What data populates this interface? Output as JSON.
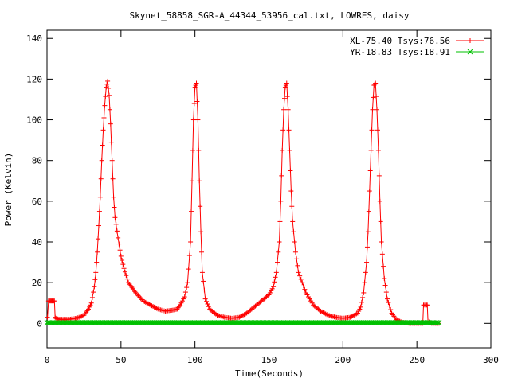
{
  "chart_data": {
    "type": "line",
    "title": "Skynet_58858_SGR-A_44344_53956_cal.txt, LOWRES, daisy",
    "xlabel": "Time(Seconds)",
    "ylabel": "Power (Kelvin)",
    "xlim": [
      0,
      300
    ],
    "ylim": [
      -12,
      144
    ],
    "x_ticks": [
      0,
      50,
      100,
      150,
      200,
      250,
      300
    ],
    "y_ticks": [
      0,
      20,
      40,
      60,
      80,
      100,
      120,
      140
    ],
    "grid": false,
    "legend_position": "top-right",
    "series": [
      {
        "name": "XL-75.40 Tsys:76.56",
        "color": "#ff0000",
        "marker": "plus",
        "points": [
          [
            0.3,
            3
          ],
          [
            1,
            11
          ],
          [
            2,
            11
          ],
          [
            3,
            11
          ],
          [
            4,
            11
          ],
          [
            5,
            11
          ],
          [
            5.5,
            3
          ],
          [
            6,
            2.5
          ],
          [
            8,
            2
          ],
          [
            10,
            2
          ],
          [
            15,
            2
          ],
          [
            20,
            2.5
          ],
          [
            25,
            4
          ],
          [
            28,
            7
          ],
          [
            30,
            10
          ],
          [
            32,
            18
          ],
          [
            33,
            25
          ],
          [
            34,
            35
          ],
          [
            35,
            48
          ],
          [
            36,
            62
          ],
          [
            37,
            80
          ],
          [
            38,
            95
          ],
          [
            39,
            107
          ],
          [
            40,
            116
          ],
          [
            41,
            119
          ],
          [
            42,
            112
          ],
          [
            43,
            98
          ],
          [
            44,
            80
          ],
          [
            45,
            62
          ],
          [
            46,
            52
          ],
          [
            48,
            42
          ],
          [
            50,
            33
          ],
          [
            52,
            27
          ],
          [
            55,
            20
          ],
          [
            58,
            17
          ],
          [
            60,
            15
          ],
          [
            65,
            11
          ],
          [
            70,
            9
          ],
          [
            75,
            7
          ],
          [
            80,
            6
          ],
          [
            85,
            6.5
          ],
          [
            88,
            7
          ],
          [
            90,
            9
          ],
          [
            93,
            13
          ],
          [
            95,
            20
          ],
          [
            97,
            40
          ],
          [
            98,
            70
          ],
          [
            99,
            100
          ],
          [
            100,
            116
          ],
          [
            101,
            118
          ],
          [
            102,
            100
          ],
          [
            103,
            70
          ],
          [
            104,
            45
          ],
          [
            105,
            25
          ],
          [
            107,
            12
          ],
          [
            110,
            7
          ],
          [
            115,
            4
          ],
          [
            120,
            3
          ],
          [
            125,
            2.5
          ],
          [
            130,
            3
          ],
          [
            135,
            5
          ],
          [
            140,
            8
          ],
          [
            145,
            11
          ],
          [
            150,
            14
          ],
          [
            153,
            18
          ],
          [
            155,
            25
          ],
          [
            157,
            40
          ],
          [
            158,
            60
          ],
          [
            159,
            85
          ],
          [
            160,
            105
          ],
          [
            161,
            116
          ],
          [
            162,
            118
          ],
          [
            163,
            105
          ],
          [
            164,
            85
          ],
          [
            165,
            65
          ],
          [
            166,
            50
          ],
          [
            168,
            35
          ],
          [
            170,
            25
          ],
          [
            175,
            15
          ],
          [
            180,
            9
          ],
          [
            185,
            6
          ],
          [
            190,
            4
          ],
          [
            195,
            3
          ],
          [
            200,
            2.5
          ],
          [
            205,
            3
          ],
          [
            210,
            5
          ],
          [
            212,
            8
          ],
          [
            214,
            15
          ],
          [
            216,
            30
          ],
          [
            217,
            45
          ],
          [
            218,
            65
          ],
          [
            219,
            85
          ],
          [
            220,
            105
          ],
          [
            221,
            117
          ],
          [
            222,
            118
          ],
          [
            223,
            105
          ],
          [
            224,
            85
          ],
          [
            225,
            60
          ],
          [
            226,
            40
          ],
          [
            228,
            22
          ],
          [
            230,
            12
          ],
          [
            233,
            5
          ],
          [
            236,
            2
          ],
          [
            240,
            0.5
          ],
          [
            245,
            0
          ],
          [
            254,
            0
          ],
          [
            254.5,
            9
          ],
          [
            256,
            9
          ],
          [
            257,
            9
          ],
          [
            257.5,
            1
          ],
          [
            260,
            0
          ],
          [
            265,
            0
          ]
        ]
      },
      {
        "name": "YR-18.83 Tsys:18.91",
        "color": "#00c000",
        "marker": "cross",
        "points": [
          [
            0,
            0.3
          ],
          [
            265,
            0.3
          ]
        ]
      }
    ]
  }
}
